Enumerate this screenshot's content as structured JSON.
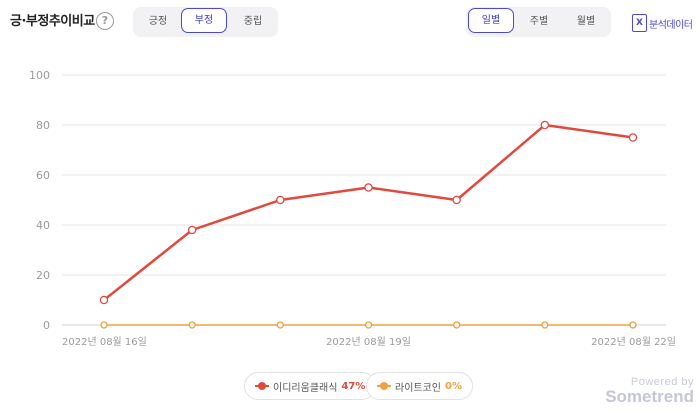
{
  "header": {
    "title": "긍·부정추이비교",
    "help_icon": "?"
  },
  "sentiment_tabs": {
    "items": [
      {
        "label": "긍정",
        "active": false
      },
      {
        "label": "부정",
        "active": true
      },
      {
        "label": "중립",
        "active": false
      }
    ]
  },
  "period_tabs": {
    "items": [
      {
        "label": "일별",
        "active": true
      },
      {
        "label": "주별",
        "active": false
      },
      {
        "label": "월별",
        "active": false
      }
    ]
  },
  "export": {
    "label": "분석데이터",
    "icon": "excel-icon",
    "icon_glyph": "X"
  },
  "colors": {
    "accent": "#4b4ad6",
    "series1": "#e2483e",
    "series2": "#f0a040",
    "grid": "#e6e6e6"
  },
  "chart_data": {
    "type": "line",
    "ylim": [
      0,
      100
    ],
    "yticks": [
      "0",
      "20",
      "40",
      "60",
      "80",
      "100"
    ],
    "x": [
      "2022-08-16",
      "2022-08-17",
      "2022-08-18",
      "2022-08-19",
      "2022-08-20",
      "2022-08-21",
      "2022-08-22"
    ],
    "xtick_labels": [
      {
        "index": 0,
        "label": "2022년 08월 16일"
      },
      {
        "index": 3,
        "label": "2022년 08월 19일"
      },
      {
        "index": 6,
        "label": "2022년 08월 22일"
      }
    ],
    "grid": true,
    "series": [
      {
        "name": "이디리움클래식",
        "values": [
          10,
          38,
          50,
          55,
          50,
          80,
          75
        ],
        "color": "#e2483e"
      },
      {
        "name": "라이트코인",
        "values": [
          0,
          0,
          0,
          0,
          0,
          0,
          0
        ],
        "color": "#f0a040"
      }
    ]
  },
  "legend": {
    "items": [
      {
        "name": "이디리움클래식",
        "percent": "47%",
        "color": "#e2483e"
      },
      {
        "name": "라이트코인",
        "percent": "0%",
        "color": "#f0a040"
      }
    ]
  },
  "branding": {
    "powered_by": "Powered by",
    "brand": "Sometrend"
  }
}
